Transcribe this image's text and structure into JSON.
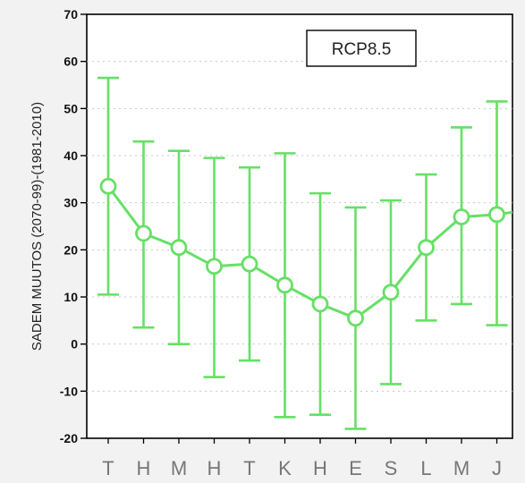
{
  "chart_data": {
    "type": "line",
    "ylabel": "SADEM MUUTOS (2070-99)-(1981-2010)",
    "legend_box": "RCP8.5",
    "categories": [
      "T",
      "H",
      "M",
      "H",
      "T",
      "K",
      "H",
      "E",
      "S",
      "L",
      "M",
      "J"
    ],
    "ylim": [
      -20,
      70
    ],
    "yticks": [
      -20,
      -10,
      0,
      10,
      20,
      30,
      40,
      50,
      60,
      70
    ],
    "grid": true,
    "series": [
      {
        "values": [
          33.5,
          23.5,
          20.5,
          16.5,
          17,
          12.5,
          8.5,
          5.5,
          11,
          20.5,
          27,
          27.5
        ],
        "lower": [
          10.5,
          3.5,
          0,
          -7,
          -3.5,
          -15.5,
          -15,
          -18,
          -8.5,
          5,
          8.5,
          4
        ],
        "upper": [
          56.5,
          43,
          41,
          39.5,
          37.5,
          40.5,
          32,
          29,
          30.5,
          36,
          46,
          51.5
        ],
        "color": "#66e066"
      }
    ]
  }
}
